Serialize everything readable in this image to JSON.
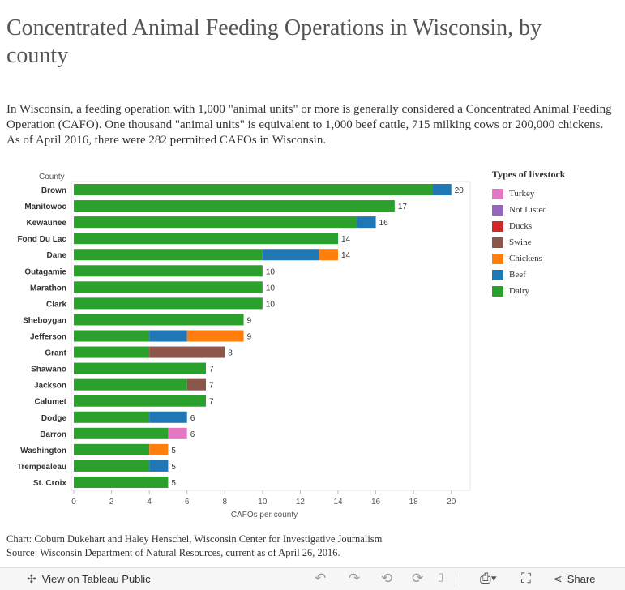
{
  "title": "Concentrated Animal Feeding Operations in Wisconsin, by county",
  "intro": "In Wisconsin, a feeding operation with 1,000 \"animal units\" or more is generally considered a Concentrated Animal Feeding Operation (CAFO). One thousand \"animal units\" is equivalent to 1,000 beef cattle, 715 milking cows or 200,000 chickens. As of April 2016, there were 282 permitted CAFOs in Wisconsin.",
  "legend": {
    "title": "Types of livestock",
    "items": [
      {
        "label": "Turkey",
        "color": "#e377c2"
      },
      {
        "label": "Not Listed",
        "color": "#9467bd"
      },
      {
        "label": "Ducks",
        "color": "#d62728"
      },
      {
        "label": "Swine",
        "color": "#8c564b"
      },
      {
        "label": "Chickens",
        "color": "#ff7f0e"
      },
      {
        "label": "Beef",
        "color": "#1f77b4"
      },
      {
        "label": "Dairy",
        "color": "#2ca02c"
      }
    ]
  },
  "chart_data": {
    "type": "bar",
    "orientation": "horizontal",
    "stacked": true,
    "ylabel": "County",
    "xlabel": "CAFOs per county",
    "xlim": [
      0,
      21
    ],
    "xticks": [
      0,
      2,
      4,
      6,
      8,
      10,
      12,
      14,
      16,
      18,
      20
    ],
    "grid": false,
    "legend_position": "right",
    "categories": [
      "Brown",
      "Manitowoc",
      "Kewaunee",
      "Fond Du Lac",
      "Dane",
      "Outagamie",
      "Marathon",
      "Clark",
      "Sheboygan",
      "Jefferson",
      "Grant",
      "Shawano",
      "Jackson",
      "Calumet",
      "Dodge",
      "Barron",
      "Washington",
      "Trempealeau",
      "St. Croix"
    ],
    "series": [
      {
        "name": "Dairy",
        "color": "#2ca02c",
        "values": [
          19,
          17,
          15,
          14,
          10,
          10,
          10,
          10,
          9,
          4,
          4,
          7,
          6,
          7,
          4,
          5,
          4,
          4,
          5
        ]
      },
      {
        "name": "Beef",
        "color": "#1f77b4",
        "values": [
          1,
          0,
          1,
          0,
          3,
          0,
          0,
          0,
          0,
          2,
          0,
          0,
          0,
          0,
          2,
          0,
          0,
          1,
          0
        ]
      },
      {
        "name": "Chickens",
        "color": "#ff7f0e",
        "values": [
          0,
          0,
          0,
          0,
          1,
          0,
          0,
          0,
          0,
          3,
          0,
          0,
          0,
          0,
          0,
          0,
          1,
          0,
          0
        ]
      },
      {
        "name": "Swine",
        "color": "#8c564b",
        "values": [
          0,
          0,
          0,
          0,
          0,
          0,
          0,
          0,
          0,
          0,
          4,
          0,
          1,
          0,
          0,
          0,
          0,
          0,
          0
        ]
      },
      {
        "name": "Ducks",
        "color": "#d62728",
        "values": [
          0,
          0,
          0,
          0,
          0,
          0,
          0,
          0,
          0,
          0,
          0,
          0,
          0,
          0,
          0,
          0,
          0,
          0,
          0
        ]
      },
      {
        "name": "Not Listed",
        "color": "#9467bd",
        "values": [
          0,
          0,
          0,
          0,
          0,
          0,
          0,
          0,
          0,
          0,
          0,
          0,
          0,
          0,
          0,
          0,
          0,
          0,
          0
        ]
      },
      {
        "name": "Turkey",
        "color": "#e377c2",
        "values": [
          0,
          0,
          0,
          0,
          0,
          0,
          0,
          0,
          0,
          0,
          0,
          0,
          0,
          0,
          0,
          1,
          0,
          0,
          0
        ]
      }
    ],
    "totals": [
      20,
      17,
      16,
      14,
      14,
      10,
      10,
      10,
      9,
      9,
      8,
      7,
      7,
      7,
      6,
      6,
      5,
      5,
      5
    ]
  },
  "credits": {
    "chart": "Chart: Coburn Dukehart and Haley Henschel, Wisconsin Center for Investigative Journalism",
    "source": "Source: Wisconsin Department of Natural Resources, current as of April 26, 2016."
  },
  "toolbar": {
    "view_label": "View on Tableau Public",
    "share_label": "Share",
    "icons": [
      "tableau-logo-icon",
      "undo-icon",
      "redo-icon",
      "revert-icon",
      "refresh-icon",
      "download-icon",
      "fullscreen-icon",
      "share-icon"
    ]
  }
}
